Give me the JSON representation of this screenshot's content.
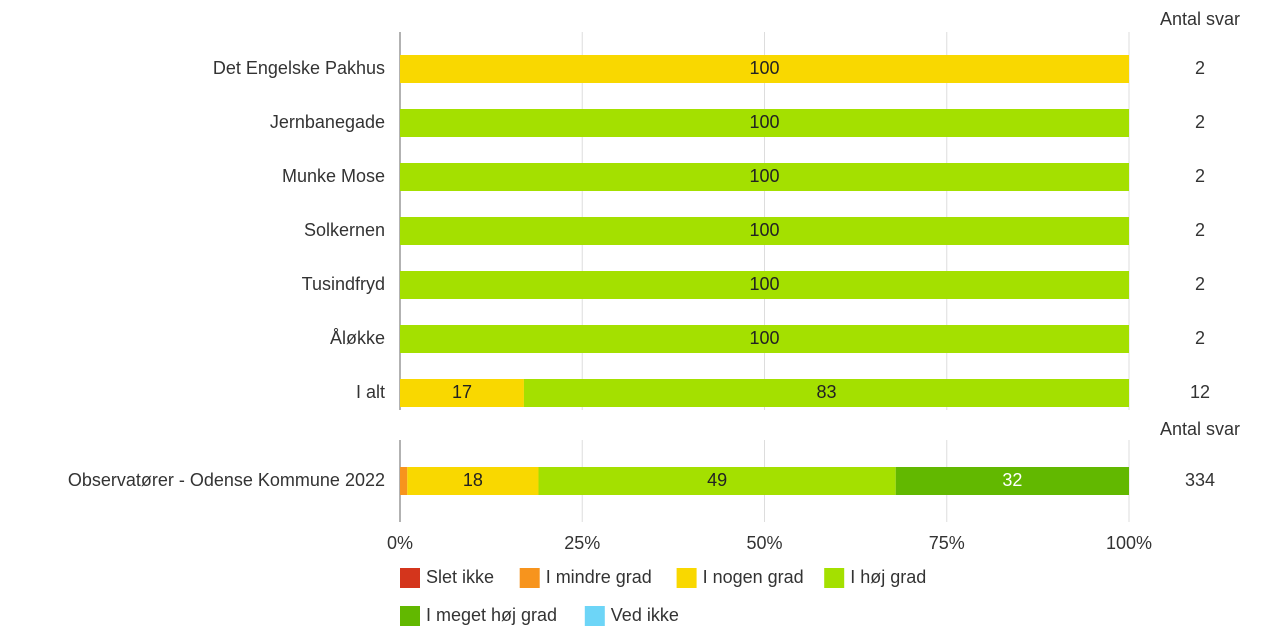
{
  "chart_data": [
    {
      "type": "stacked_barh",
      "categories": [
        "Det Engelske Pakhus",
        "Jernbanegade",
        "Munke Mose",
        "Solkernen",
        "Tusindfryd",
        "Åløkke",
        "I alt"
      ],
      "series": [
        {
          "name": "Slet ikke",
          "color": "#d4351c",
          "values": [
            null,
            null,
            null,
            null,
            null,
            null,
            null
          ]
        },
        {
          "name": "I mindre grad",
          "color": "#f7941d",
          "values": [
            null,
            null,
            null,
            null,
            null,
            null,
            null
          ]
        },
        {
          "name": "I nogen grad",
          "color": "#f9d800",
          "values": [
            100,
            null,
            null,
            null,
            null,
            null,
            17
          ]
        },
        {
          "name": "I høj grad",
          "color": "#a4e000",
          "values": [
            null,
            100,
            100,
            100,
            100,
            100,
            83
          ]
        },
        {
          "name": "I meget høj grad",
          "color": "#62b800",
          "values": [
            null,
            null,
            null,
            null,
            null,
            null,
            null
          ]
        },
        {
          "name": "Ved ikke",
          "color": "#6dd5f7",
          "values": [
            null,
            null,
            null,
            null,
            null,
            null,
            null
          ]
        }
      ],
      "counts_title": "Antal svar",
      "counts": [
        2,
        2,
        2,
        2,
        2,
        2,
        12
      ],
      "xlim": [
        0,
        100
      ],
      "xticks": [
        {
          "value": 0,
          "label": "0%"
        },
        {
          "value": 25,
          "label": "25%"
        },
        {
          "value": 50,
          "label": "50%"
        },
        {
          "value": 75,
          "label": "75%"
        },
        {
          "value": 100,
          "label": "100%"
        }
      ],
      "grid": true
    },
    {
      "type": "stacked_barh",
      "categories": [
        "Observatører - Odense Kommune 2022"
      ],
      "series": [
        {
          "name": "Slet ikke",
          "color": "#d4351c",
          "values": [
            null
          ]
        },
        {
          "name": "I mindre grad",
          "color": "#f7941d",
          "values": [
            1
          ]
        },
        {
          "name": "I nogen grad",
          "color": "#f9d800",
          "values": [
            18
          ]
        },
        {
          "name": "I høj grad",
          "color": "#a4e000",
          "values": [
            49
          ]
        },
        {
          "name": "I meget høj grad",
          "color": "#62b800",
          "values": [
            32
          ]
        },
        {
          "name": "Ved ikke",
          "color": "#6dd5f7",
          "values": [
            null
          ]
        }
      ],
      "counts_title": "Antal svar",
      "counts": [
        334
      ]
    }
  ]
}
